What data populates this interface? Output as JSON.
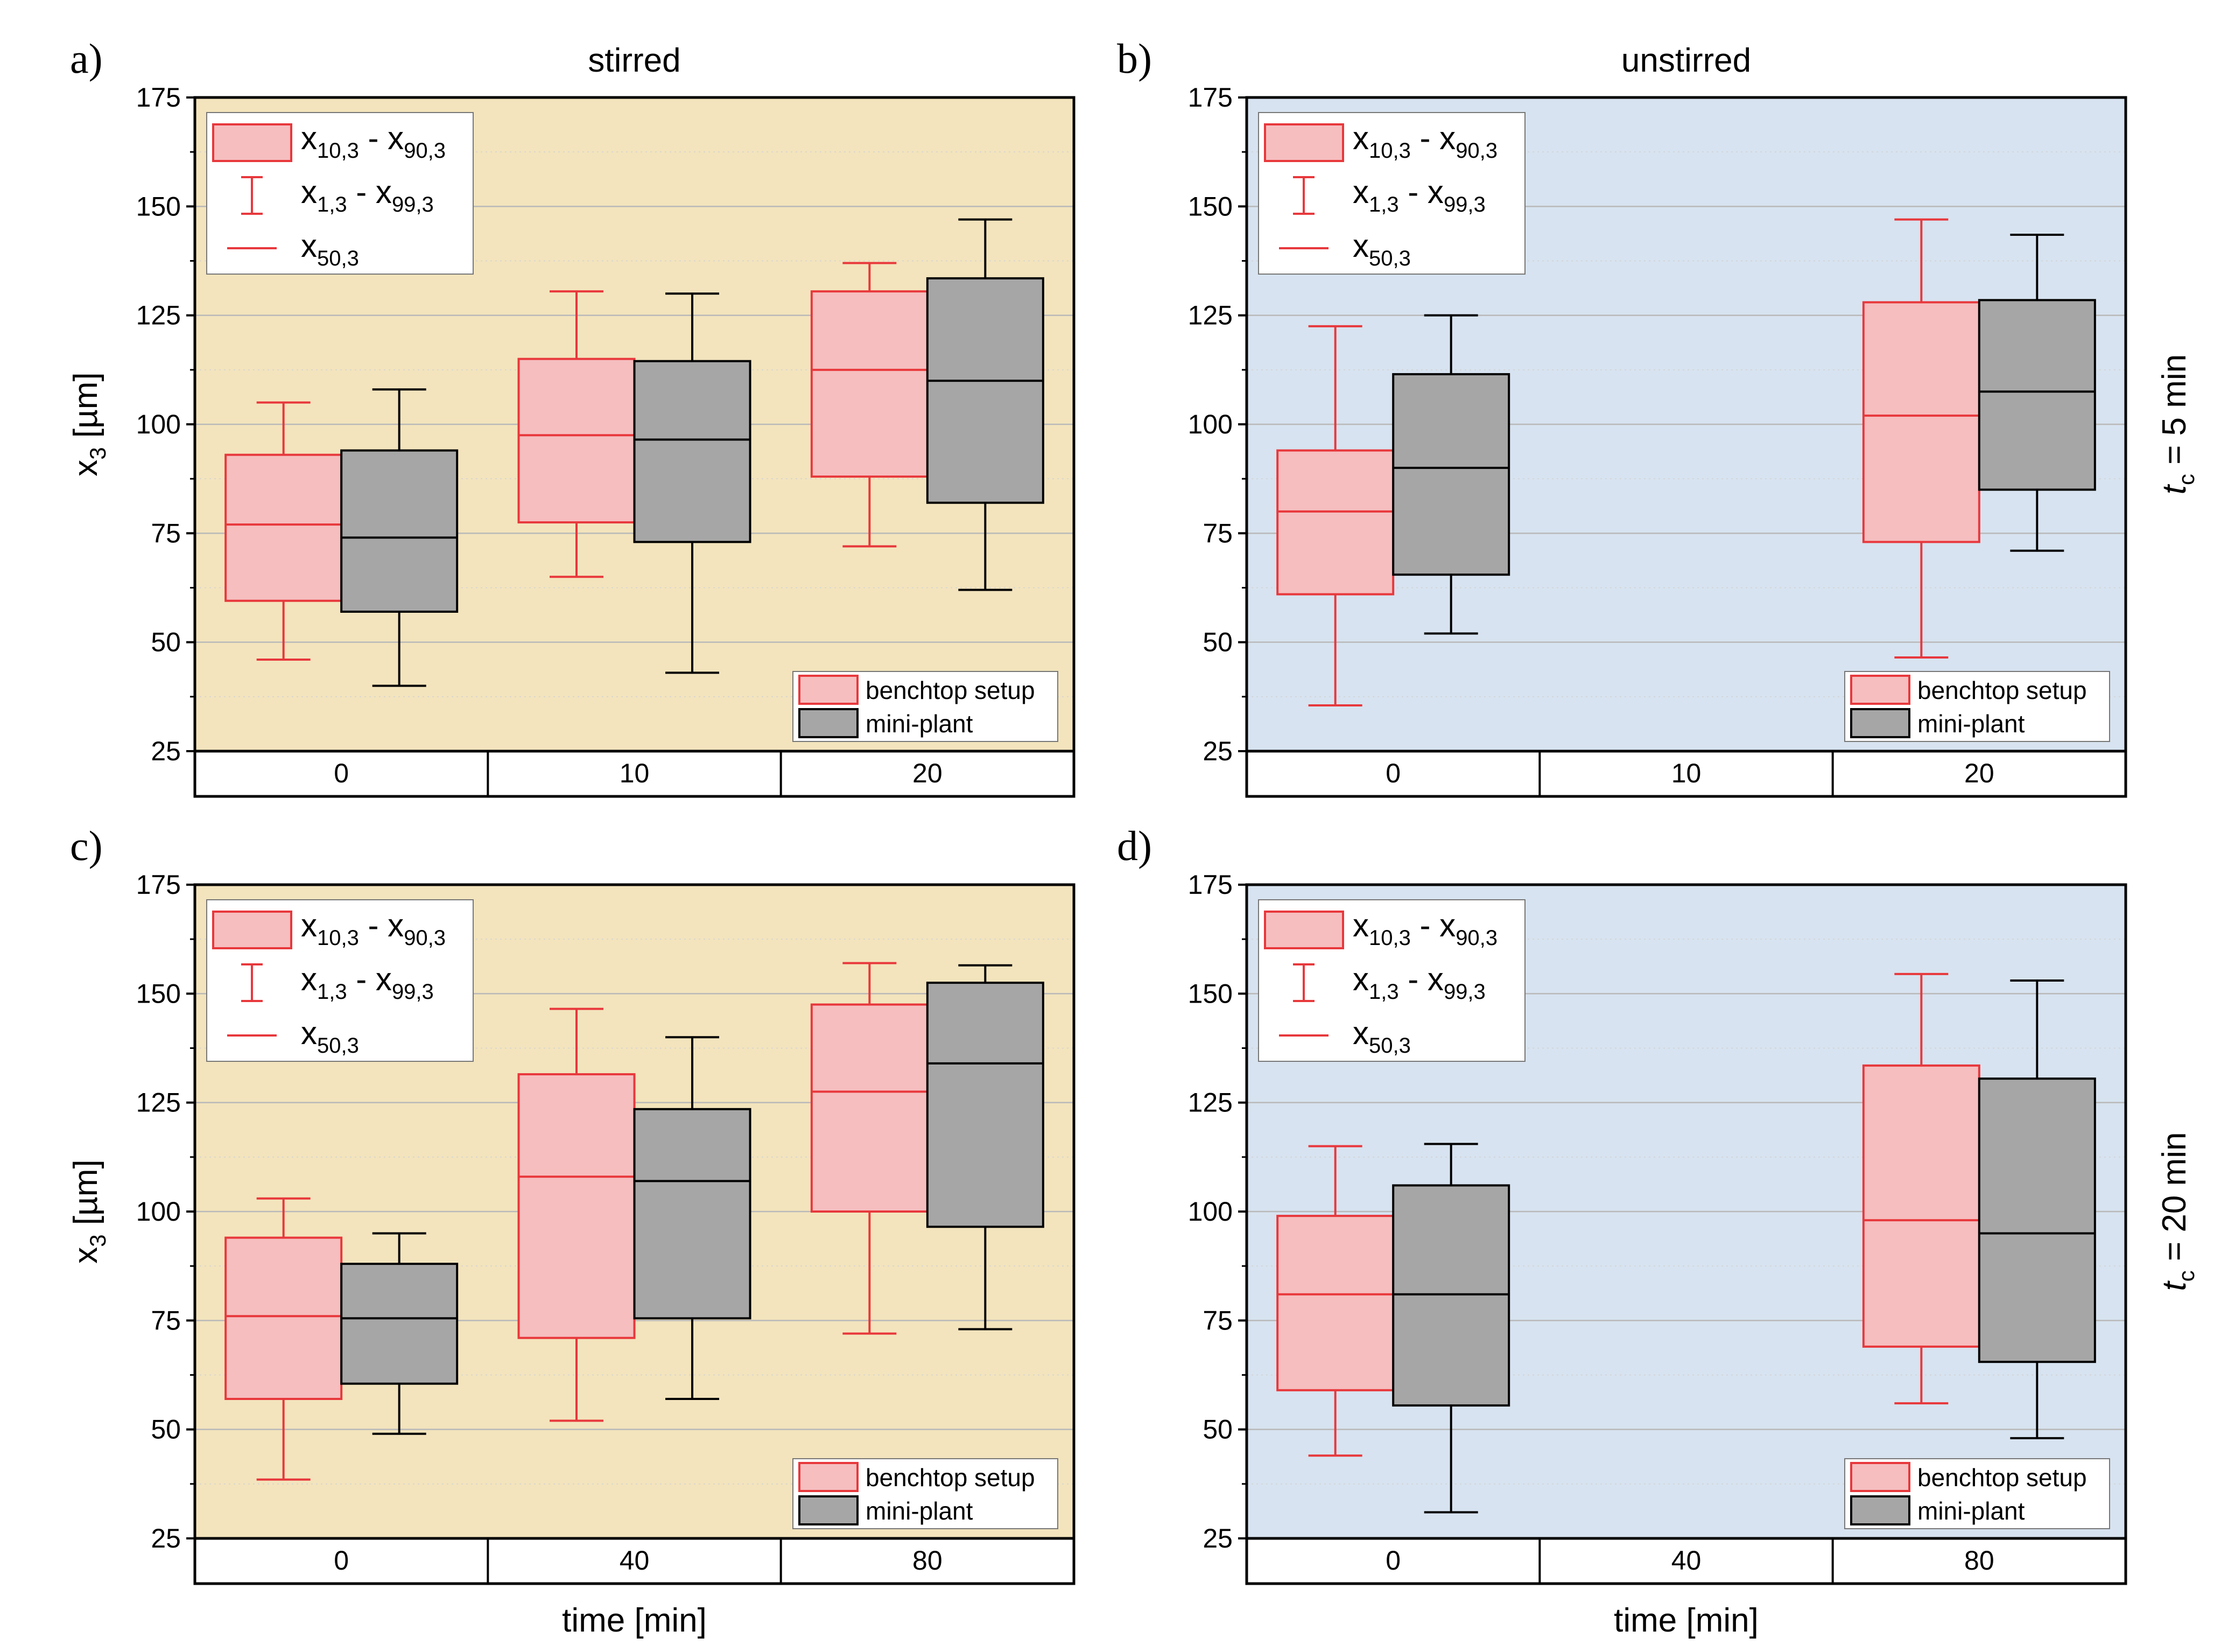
{
  "figure": {
    "column_titles": [
      "stirred",
      "unstirred"
    ],
    "row_labels": [
      {
        "var": "t",
        "sub": "c",
        "rest": " = 5 min"
      },
      {
        "var": "t",
        "sub": "c",
        "rest": " = 20 min"
      }
    ],
    "xlabel": "time [min]",
    "ylabel": {
      "base": "x",
      "sub": "3",
      "rest": " [µm]"
    },
    "legend_top": [
      {
        "kind": "box",
        "label": {
          "main": "x",
          "s1": "10,3",
          "mid": " - x",
          "s2": "90,3"
        }
      },
      {
        "kind": "whisker",
        "label": {
          "main": "x",
          "s1": "1,3",
          "mid": " - x",
          "s2": "99,3"
        }
      },
      {
        "kind": "median",
        "label": {
          "main": "x",
          "s1": "50,3",
          "mid": "",
          "s2": ""
        }
      }
    ],
    "legend_series": [
      "benchtop setup",
      "mini-plant"
    ],
    "colors": {
      "stirred_bg": "#f3e4bd",
      "unstirred_bg": "#d7e3f0",
      "benchtop_fill": "#f6bebf",
      "benchtop_line": "#e8383c",
      "miniplant_fill": "#a6a6a6",
      "miniplant_line": "#000000"
    }
  },
  "chart_data": [
    {
      "panel": "a)",
      "type": "box",
      "title": "stirred",
      "categories": [
        "0",
        "10",
        "20"
      ],
      "ylim": [
        25,
        175
      ],
      "yticks": [
        25,
        50,
        75,
        100,
        125,
        150,
        175
      ],
      "series": [
        {
          "name": "benchtop setup",
          "boxes": [
            {
              "cat": 0,
              "whisker_low": 46,
              "q10": 59.5,
              "median": 77,
              "q90": 93,
              "whisker_high": 105
            },
            {
              "cat": 1,
              "whisker_low": 65,
              "q10": 77.5,
              "median": 97.5,
              "q90": 115,
              "whisker_high": 130.5
            },
            {
              "cat": 2,
              "whisker_low": 72,
              "q10": 88,
              "median": 112.5,
              "q90": 130.5,
              "whisker_high": 137
            }
          ]
        },
        {
          "name": "mini-plant",
          "boxes": [
            {
              "cat": 0,
              "whisker_low": 40,
              "q10": 57,
              "median": 74,
              "q90": 94,
              "whisker_high": 108
            },
            {
              "cat": 1,
              "whisker_low": 43,
              "q10": 73,
              "median": 96.5,
              "q90": 114.5,
              "whisker_high": 130
            },
            {
              "cat": 2,
              "whisker_low": 62,
              "q10": 82,
              "median": 110,
              "q90": 133.5,
              "whisker_high": 147
            }
          ]
        }
      ]
    },
    {
      "panel": "b)",
      "type": "box",
      "title": "unstirred",
      "categories": [
        "0",
        "10",
        "20"
      ],
      "ylim": [
        25,
        175
      ],
      "yticks": [
        25,
        50,
        75,
        100,
        125,
        150,
        175
      ],
      "series": [
        {
          "name": "benchtop setup",
          "boxes": [
            {
              "cat": 0,
              "whisker_low": 35.5,
              "q10": 61,
              "median": 80,
              "q90": 94,
              "whisker_high": 122.5
            },
            {
              "cat": 2,
              "whisker_low": 46.5,
              "q10": 73,
              "median": 102,
              "q90": 128,
              "whisker_high": 147
            }
          ]
        },
        {
          "name": "mini-plant",
          "boxes": [
            {
              "cat": 0,
              "whisker_low": 52,
              "q10": 65.5,
              "median": 90,
              "q90": 111.5,
              "whisker_high": 125
            },
            {
              "cat": 2,
              "whisker_low": 71,
              "q10": 85,
              "median": 107.5,
              "q90": 128.5,
              "whisker_high": 143.5
            }
          ]
        }
      ]
    },
    {
      "panel": "c)",
      "type": "box",
      "title": "",
      "categories": [
        "0",
        "40",
        "80"
      ],
      "ylim": [
        25,
        175
      ],
      "yticks": [
        25,
        50,
        75,
        100,
        125,
        150,
        175
      ],
      "series": [
        {
          "name": "benchtop setup",
          "boxes": [
            {
              "cat": 0,
              "whisker_low": 38.5,
              "q10": 57,
              "median": 76,
              "q90": 94,
              "whisker_high": 103
            },
            {
              "cat": 1,
              "whisker_low": 52,
              "q10": 71,
              "median": 108,
              "q90": 131.5,
              "whisker_high": 146.5
            },
            {
              "cat": 2,
              "whisker_low": 72,
              "q10": 100,
              "median": 127.5,
              "q90": 147.5,
              "whisker_high": 157
            }
          ]
        },
        {
          "name": "mini-plant",
          "boxes": [
            {
              "cat": 0,
              "whisker_low": 49,
              "q10": 60.5,
              "median": 75.5,
              "q90": 88,
              "whisker_high": 95
            },
            {
              "cat": 1,
              "whisker_low": 57,
              "q10": 75.5,
              "median": 107,
              "q90": 123.5,
              "whisker_high": 140
            },
            {
              "cat": 2,
              "whisker_low": 73,
              "q10": 96.5,
              "median": 134,
              "q90": 152.5,
              "whisker_high": 156.5
            }
          ]
        }
      ]
    },
    {
      "panel": "d)",
      "type": "box",
      "title": "",
      "categories": [
        "0",
        "40",
        "80"
      ],
      "ylim": [
        25,
        175
      ],
      "yticks": [
        25,
        50,
        75,
        100,
        125,
        150,
        175
      ],
      "series": [
        {
          "name": "benchtop setup",
          "boxes": [
            {
              "cat": 0,
              "whisker_low": 44,
              "q10": 59,
              "median": 81,
              "q90": 99,
              "whisker_high": 115
            },
            {
              "cat": 2,
              "whisker_low": 56,
              "q10": 69,
              "median": 98,
              "q90": 133.5,
              "whisker_high": 154.5
            }
          ]
        },
        {
          "name": "mini-plant",
          "boxes": [
            {
              "cat": 0,
              "whisker_low": 31,
              "q10": 55.5,
              "median": 81,
              "q90": 106,
              "whisker_high": 115.5
            },
            {
              "cat": 2,
              "whisker_low": 48,
              "q10": 65.5,
              "median": 95,
              "q90": 130.5,
              "whisker_high": 153
            }
          ]
        }
      ]
    }
  ]
}
